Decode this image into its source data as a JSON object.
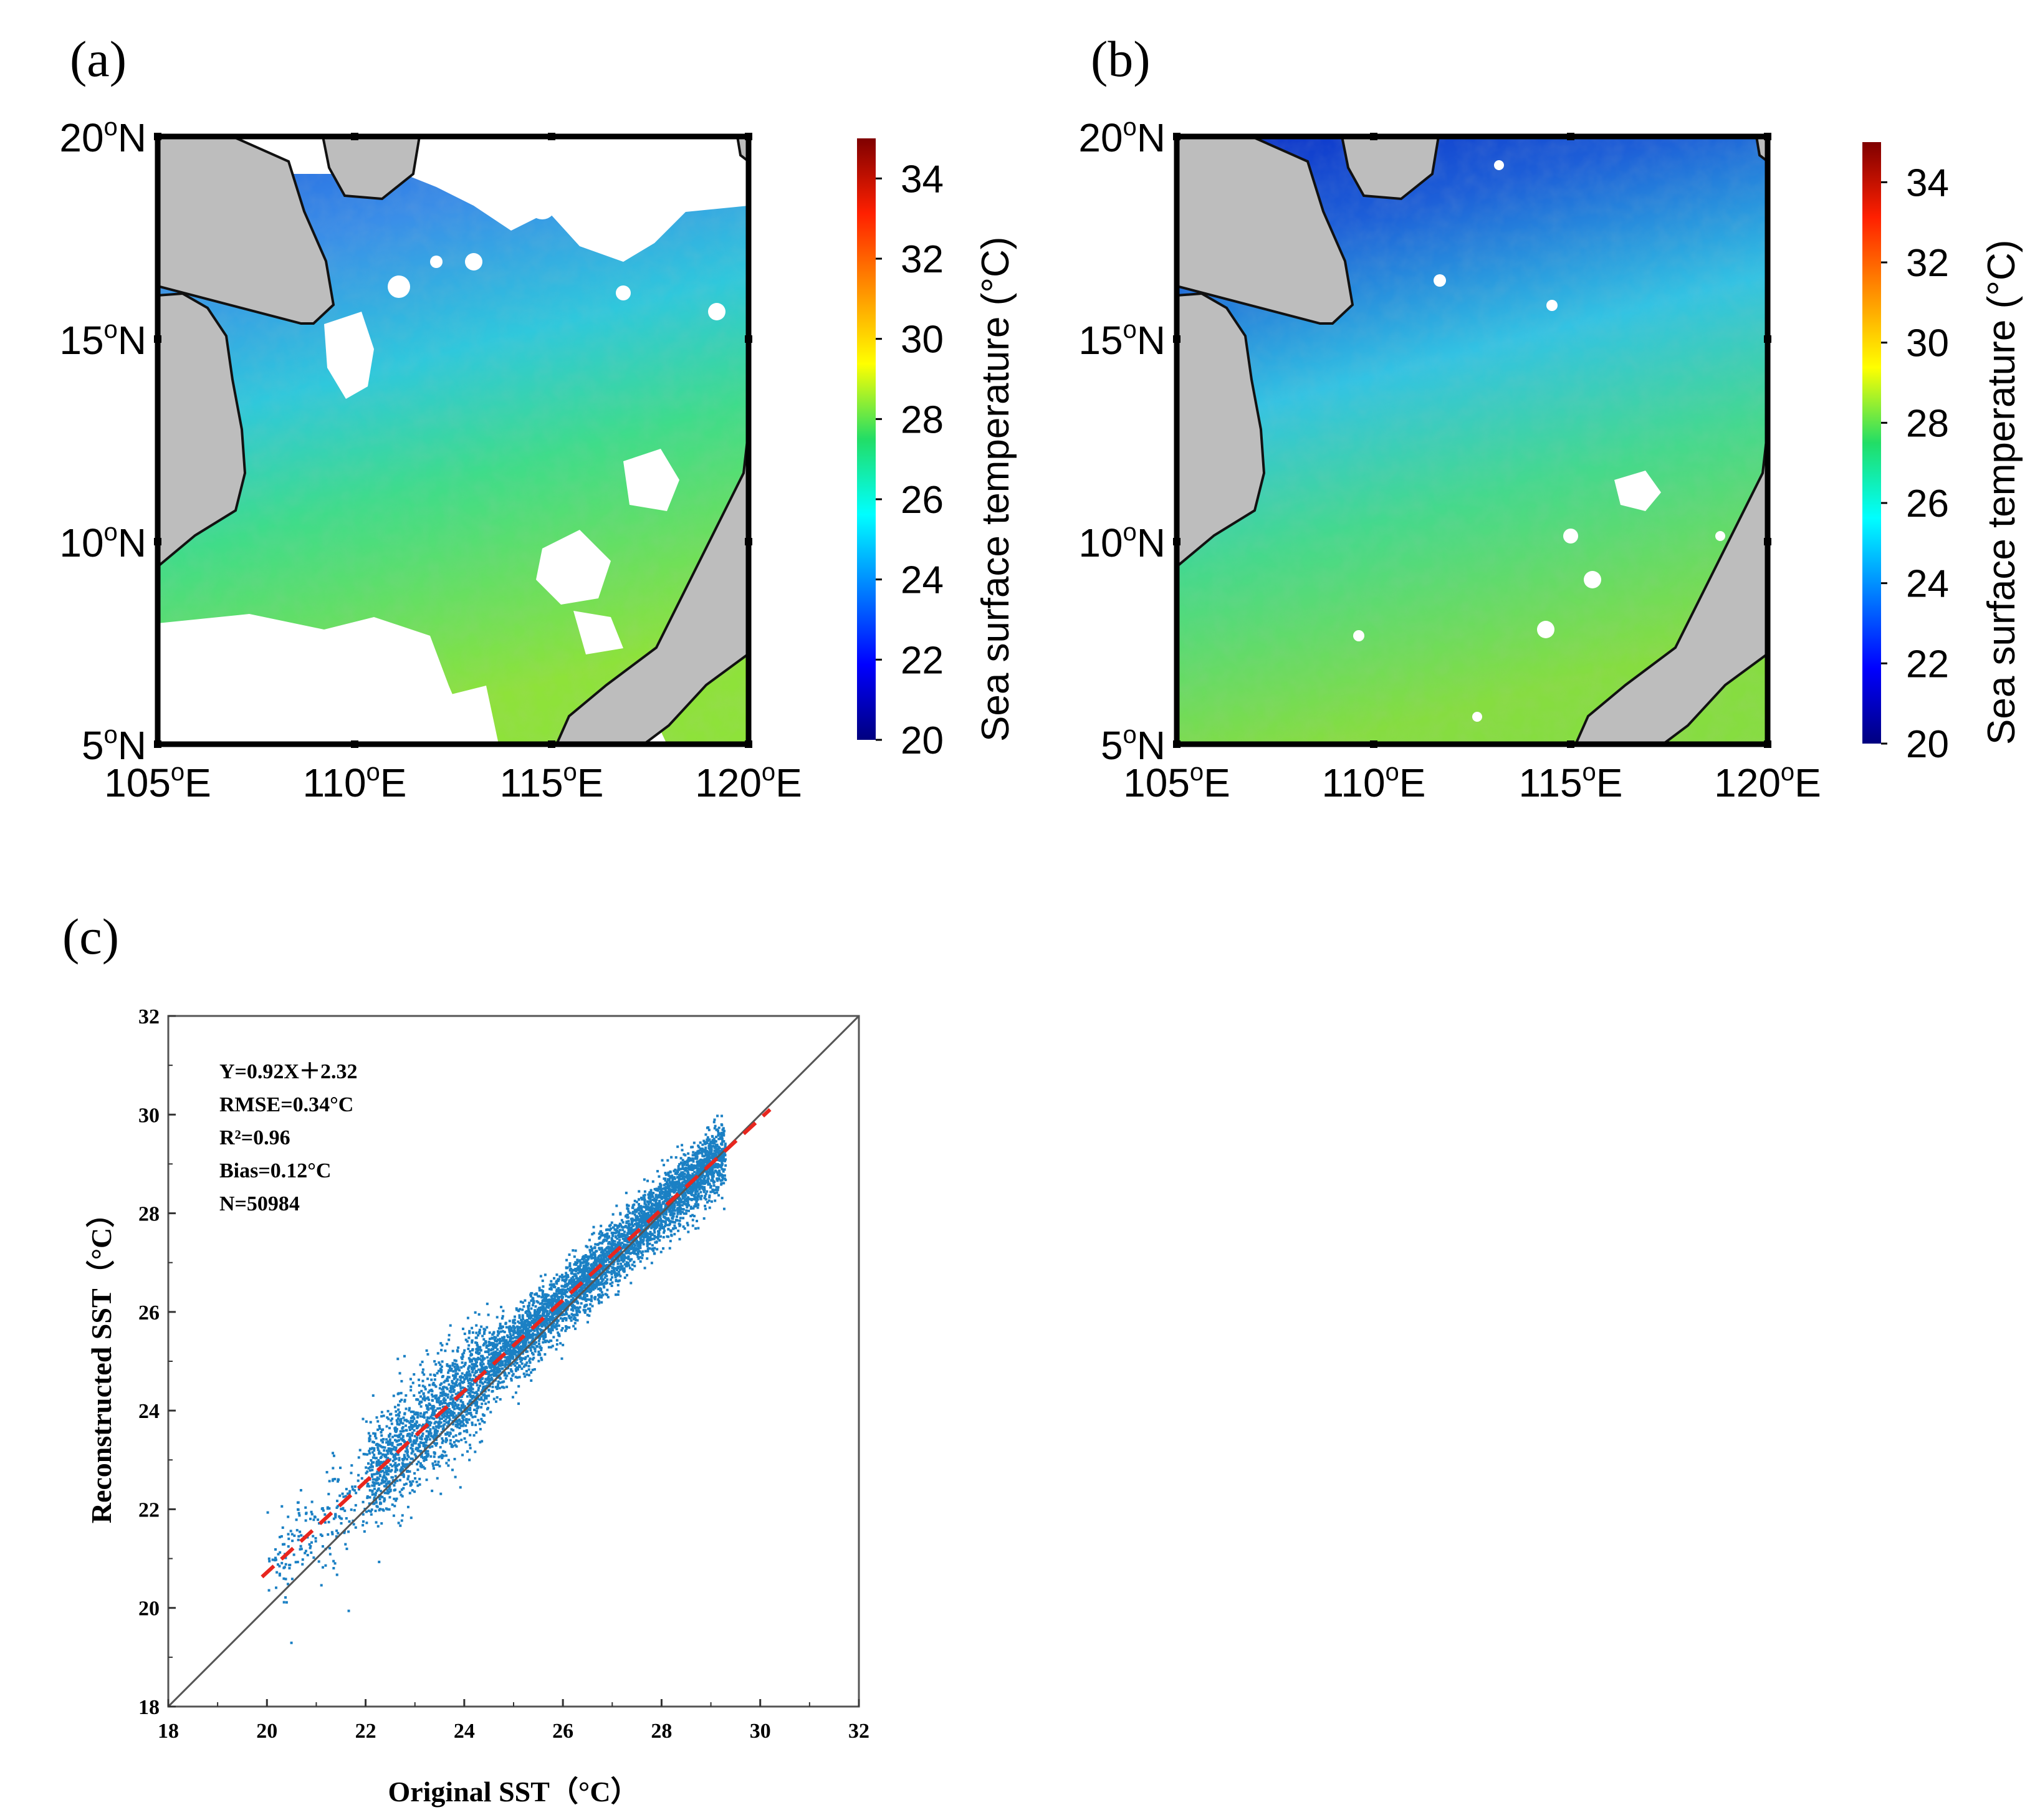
{
  "chart_data": [
    {
      "type": "heatmap",
      "panel_label": "(a)",
      "title": "",
      "lat_ticks": [
        {
          "value": 20,
          "deg": "20",
          "hemi": "N"
        },
        {
          "value": 15,
          "deg": "15",
          "hemi": "N"
        },
        {
          "value": 10,
          "deg": "10",
          "hemi": "N"
        },
        {
          "value": 5,
          "deg": "5",
          "hemi": "N"
        }
      ],
      "lon_ticks": [
        {
          "value": 105,
          "deg": "105",
          "hemi": "E"
        },
        {
          "value": 110,
          "deg": "110",
          "hemi": "E"
        },
        {
          "value": 115,
          "deg": "115",
          "hemi": "E"
        },
        {
          "value": 120,
          "deg": "120",
          "hemi": "E"
        }
      ],
      "xlim": [
        105,
        120
      ],
      "ylim": [
        5,
        20
      ],
      "colorbar": {
        "label": "Sea surface temperature (°C)",
        "range": [
          20,
          35
        ],
        "ticks": [
          "34",
          "32",
          "30",
          "28",
          "26",
          "24",
          "22",
          "20"
        ]
      },
      "description_values": {
        "north_mean_sst": 23.5,
        "south_mean_sst": 27.5
      }
    },
    {
      "type": "heatmap",
      "panel_label": "(b)",
      "title": "",
      "lat_ticks": [
        {
          "value": 20,
          "deg": "20",
          "hemi": "N"
        },
        {
          "value": 15,
          "deg": "15",
          "hemi": "N"
        },
        {
          "value": 10,
          "deg": "10",
          "hemi": "N"
        },
        {
          "value": 5,
          "deg": "5",
          "hemi": "N"
        }
      ],
      "lon_ticks": [
        {
          "value": 105,
          "deg": "105",
          "hemi": "E"
        },
        {
          "value": 110,
          "deg": "110",
          "hemi": "E"
        },
        {
          "value": 115,
          "deg": "115",
          "hemi": "E"
        },
        {
          "value": 120,
          "deg": "120",
          "hemi": "E"
        }
      ],
      "xlim": [
        105,
        120
      ],
      "ylim": [
        5,
        20
      ],
      "colorbar": {
        "label": "Sea surface temperature (°C)",
        "range": [
          20,
          35
        ],
        "ticks": [
          "34",
          "32",
          "30",
          "28",
          "26",
          "24",
          "22",
          "20"
        ]
      },
      "description_values": {
        "north_mean_sst": 22.5,
        "south_mean_sst": 27.5
      }
    },
    {
      "type": "scatter",
      "panel_label": "(c)",
      "xlabel": "Original SST（°C）",
      "ylabel": "Reconstructed SST（°C）",
      "xlim": [
        18,
        32
      ],
      "ylim": [
        18,
        32
      ],
      "xticks": [
        "18",
        "20",
        "22",
        "24",
        "26",
        "28",
        "30",
        "32"
      ],
      "yticks": [
        "18",
        "20",
        "22",
        "24",
        "26",
        "28",
        "30",
        "32"
      ],
      "stats": [
        "Y=0.92X＋2.32",
        "RMSE=0.34°C",
        "R²=0.96",
        "Bias=0.12°C",
        "N=50984"
      ],
      "fit_line": {
        "slope": 0.92,
        "intercept": 2.32,
        "x_range": [
          19.9,
          30.2
        ],
        "color": "#e8261e",
        "style": "dashed"
      },
      "reference_line": {
        "slope": 1,
        "intercept": 0,
        "x_range": [
          18,
          32
        ],
        "color": "#555555"
      },
      "point_color": "#1b80c4",
      "n_points": 50984
    }
  ]
}
